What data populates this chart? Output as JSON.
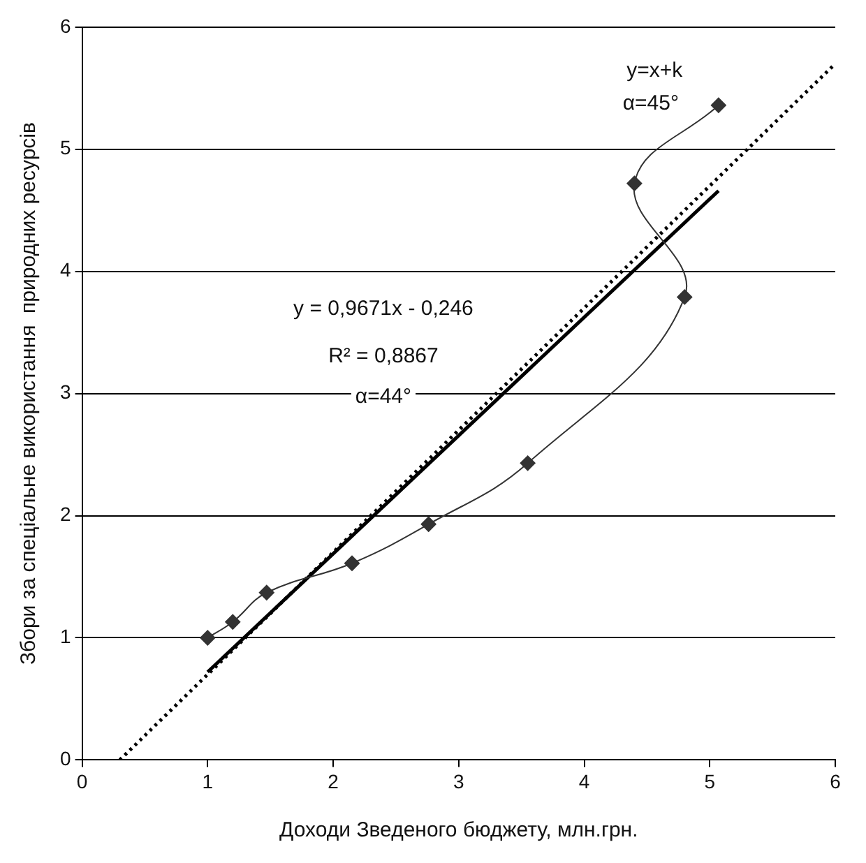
{
  "chart_data": {
    "type": "line",
    "xlabel": "Доходи Зведеного бюджету, млн.грн.",
    "ylabel": "Збори за спеціальне використання  природних ресурсів",
    "xlim": [
      0,
      6
    ],
    "ylim": [
      0,
      6
    ],
    "xticks": [
      0,
      1,
      2,
      3,
      4,
      5,
      6
    ],
    "yticks": [
      0,
      1,
      2,
      3,
      4,
      5,
      6
    ],
    "grid": "y",
    "legend": false,
    "series": [
      {
        "color": "#333333",
        "marker": "diamond",
        "line_style": "solid",
        "x": [
          1.0,
          1.2,
          1.47,
          2.15,
          2.76,
          3.55,
          4.8,
          4.4,
          5.07
        ],
        "values": [
          1.0,
          1.13,
          1.37,
          1.61,
          1.93,
          2.43,
          3.79,
          4.72,
          5.36
        ]
      },
      {
        "color": "#000000",
        "marker": "none",
        "line_style": "solid",
        "x": [
          1.0,
          5.07
        ],
        "values": [
          0.72,
          4.66
        ]
      },
      {
        "color": "#000000",
        "marker": "none",
        "line_style": "dotted",
        "x": [
          0.3,
          6.0
        ],
        "values": [
          0,
          5.7
        ]
      }
    ],
    "annotations": [
      "y=x+k",
      "α=45°",
      "y = 0,9671x - 0,246",
      "R² = 0,8867",
      "α=44°"
    ]
  }
}
